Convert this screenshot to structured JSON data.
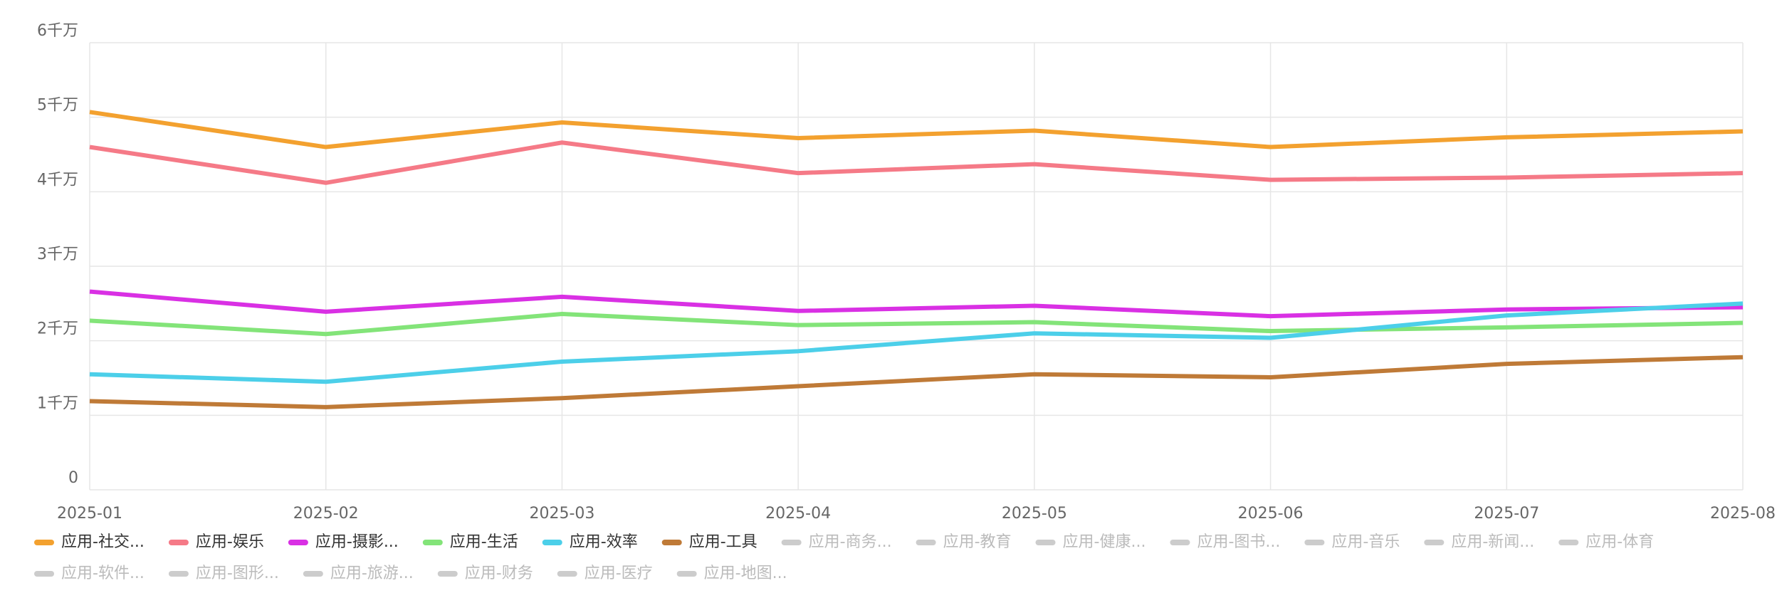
{
  "chart_data": {
    "type": "line",
    "categories": [
      "2025-01",
      "2025-02",
      "2025-03",
      "2025-04",
      "2025-05",
      "2025-06",
      "2025-07",
      "2025-08"
    ],
    "series": [
      {
        "name": "应用-社交...",
        "color": "#f3a12f",
        "values": [
          50700000,
          46000000,
          49300000,
          47200000,
          48200000,
          46000000,
          47300000,
          48100000
        ]
      },
      {
        "name": "应用-娱乐",
        "color": "#f57a87",
        "values": [
          46000000,
          41200000,
          46600000,
          42500000,
          43700000,
          41600000,
          41900000,
          42500000
        ]
      },
      {
        "name": "应用-摄影...",
        "color": "#d930e4",
        "values": [
          26600000,
          23900000,
          25900000,
          24000000,
          24700000,
          23300000,
          24200000,
          24500000
        ]
      },
      {
        "name": "应用-生活",
        "color": "#83e479",
        "values": [
          22700000,
          20900000,
          23600000,
          22100000,
          22500000,
          21300000,
          21800000,
          22400000
        ]
      },
      {
        "name": "应用-效率",
        "color": "#4ccfe9",
        "values": [
          15500000,
          14500000,
          17200000,
          18600000,
          21000000,
          20400000,
          23400000,
          25000000
        ]
      },
      {
        "name": "应用-工具",
        "color": "#bf7a37",
        "values": [
          11900000,
          11100000,
          12300000,
          13900000,
          15500000,
          15100000,
          16900000,
          17800000
        ]
      }
    ],
    "inactive_legend": {
      "color": "#cccccc",
      "names": [
        "应用-商务...",
        "应用-教育",
        "应用-健康...",
        "应用-图书...",
        "应用-音乐",
        "应用-新闻...",
        "应用-体育",
        "应用-软件...",
        "应用-图形...",
        "应用-旅游...",
        "应用-财务",
        "应用-医疗",
        "应用-地图..."
      ]
    },
    "ylim": [
      0,
      60000000
    ],
    "yticks": [
      0,
      {
        "value": 10000000,
        "label": "1千万"
      },
      {
        "value": 20000000,
        "label": "2千万"
      },
      {
        "value": 30000000,
        "label": "3千万"
      },
      {
        "value": 40000000,
        "label": "4千万"
      },
      {
        "value": 50000000,
        "label": "5千万"
      },
      {
        "value": 60000000,
        "label": "6千万"
      }
    ],
    "grid": true
  }
}
